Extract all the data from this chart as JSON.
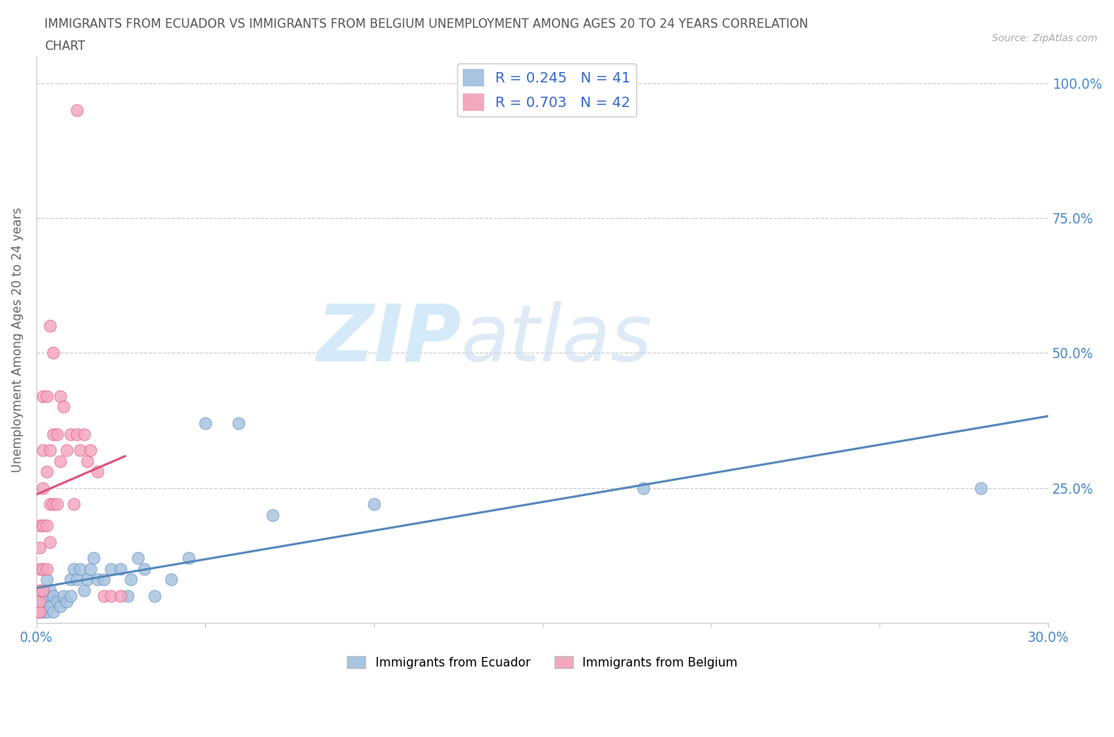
{
  "title_line1": "IMMIGRANTS FROM ECUADOR VS IMMIGRANTS FROM BELGIUM UNEMPLOYMENT AMONG AGES 20 TO 24 YEARS CORRELATION",
  "title_line2": "CHART",
  "source": "Source: ZipAtlas.com",
  "ylabel": "Unemployment Among Ages 20 to 24 years",
  "xlim": [
    0.0,
    0.3
  ],
  "ylim": [
    0.0,
    1.05
  ],
  "xticks": [
    0.0,
    0.05,
    0.1,
    0.15,
    0.2,
    0.25,
    0.3
  ],
  "xticklabels": [
    "0.0%",
    "",
    "",
    "",
    "",
    "",
    "30.0%"
  ],
  "ytick_positions": [
    0.25,
    0.5,
    0.75,
    1.0
  ],
  "yticklabels": [
    "25.0%",
    "50.0%",
    "75.0%",
    "100.0%"
  ],
  "R_ecuador": 0.245,
  "N_ecuador": 41,
  "R_belgium": 0.703,
  "N_belgium": 42,
  "color_ecuador": "#a8c4e0",
  "color_belgium": "#f4a8c0",
  "trendline_ecuador": "#5588bb",
  "trendline_belgium": "#e0507a",
  "watermark_zip": "ZIP",
  "watermark_atlas": "atlas",
  "legend_label_ecuador": "Immigrants from Ecuador",
  "legend_label_belgium": "Immigrants from Belgium",
  "ecuador_x": [
    0.001,
    0.001,
    0.002,
    0.002,
    0.003,
    0.003,
    0.003,
    0.004,
    0.004,
    0.005,
    0.005,
    0.006,
    0.007,
    0.008,
    0.009,
    0.01,
    0.01,
    0.011,
    0.012,
    0.013,
    0.014,
    0.015,
    0.016,
    0.017,
    0.018,
    0.02,
    0.022,
    0.025,
    0.027,
    0.028,
    0.03,
    0.032,
    0.035,
    0.04,
    0.045,
    0.05,
    0.06,
    0.07,
    0.1,
    0.18,
    0.28
  ],
  "ecuador_y": [
    0.02,
    0.03,
    0.02,
    0.04,
    0.02,
    0.05,
    0.08,
    0.03,
    0.06,
    0.02,
    0.05,
    0.04,
    0.03,
    0.05,
    0.04,
    0.05,
    0.08,
    0.1,
    0.08,
    0.1,
    0.06,
    0.08,
    0.1,
    0.12,
    0.08,
    0.08,
    0.1,
    0.1,
    0.05,
    0.08,
    0.12,
    0.1,
    0.05,
    0.08,
    0.12,
    0.37,
    0.37,
    0.2,
    0.22,
    0.25,
    0.25
  ],
  "belgium_x": [
    0.0005,
    0.001,
    0.001,
    0.001,
    0.001,
    0.001,
    0.001,
    0.002,
    0.002,
    0.002,
    0.002,
    0.002,
    0.002,
    0.003,
    0.003,
    0.003,
    0.003,
    0.004,
    0.004,
    0.004,
    0.004,
    0.005,
    0.005,
    0.005,
    0.006,
    0.006,
    0.007,
    0.007,
    0.008,
    0.009,
    0.01,
    0.011,
    0.012,
    0.013,
    0.014,
    0.015,
    0.016,
    0.018,
    0.02,
    0.022,
    0.025,
    0.012
  ],
  "belgium_y": [
    0.02,
    0.02,
    0.04,
    0.06,
    0.1,
    0.14,
    0.18,
    0.06,
    0.1,
    0.18,
    0.25,
    0.32,
    0.42,
    0.1,
    0.18,
    0.28,
    0.42,
    0.15,
    0.22,
    0.32,
    0.55,
    0.22,
    0.35,
    0.5,
    0.22,
    0.35,
    0.3,
    0.42,
    0.4,
    0.32,
    0.35,
    0.22,
    0.35,
    0.32,
    0.35,
    0.3,
    0.32,
    0.28,
    0.05,
    0.05,
    0.05,
    0.95
  ]
}
